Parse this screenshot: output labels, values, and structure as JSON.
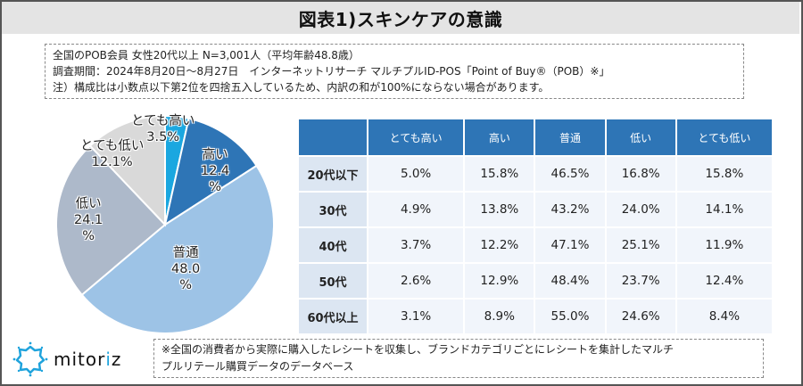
{
  "title": "図表1)スキンケアの意識",
  "info": {
    "line1": "全国のPOB会員 女性20代以上 N=3,001人（平均年齢48.8歳）",
    "line2": "調査期間：2024年8月20日～8月27日　インターネットリサーチ マルチプルID-POS「Point of Buy®（POB）※」",
    "line3": "注）構成比は小数点以下第2位を四捨五入しているため、内訳の和が100%にならない場合があります。"
  },
  "pie": {
    "labels": [
      {
        "name": "とても高い",
        "value": "3.5%"
      },
      {
        "name": "高い",
        "value": "12.4",
        "unit": "%"
      },
      {
        "name": "普通",
        "value": "48.0",
        "unit": "%"
      },
      {
        "name": "低い",
        "value": "24.1",
        "unit": "%"
      },
      {
        "name": "とても低い",
        "value": "12.1%"
      }
    ]
  },
  "table": {
    "headers": [
      "",
      "とても高い",
      "高い",
      "普通",
      "低い",
      "とても低い"
    ],
    "rows": [
      {
        "label": "20代以下",
        "cells": [
          "5.0%",
          "15.8%",
          "46.5%",
          "16.8%",
          "15.8%"
        ]
      },
      {
        "label": "30代",
        "cells": [
          "4.9%",
          "13.8%",
          "43.2%",
          "24.0%",
          "14.1%"
        ]
      },
      {
        "label": "40代",
        "cells": [
          "3.7%",
          "12.2%",
          "47.1%",
          "25.1%",
          "11.9%"
        ]
      },
      {
        "label": "50代",
        "cells": [
          "2.6%",
          "12.9%",
          "48.4%",
          "23.7%",
          "12.4%"
        ]
      },
      {
        "label": "60代以上",
        "cells": [
          "3.1%",
          "8.9%",
          "55.0%",
          "24.6%",
          "8.4%"
        ]
      }
    ]
  },
  "logo": {
    "text_pre": "mitor",
    "text_accent": "i",
    "text_post": "z"
  },
  "footnote": {
    "line1": "※全国の消費者から実際に購入したレシートを収集し、ブランドカテゴリごとにレシートを集計したマルチ",
    "line2": "プルリテール購買データのデータベース"
  },
  "colors": {
    "very_high": "#1aa7e0",
    "high": "#2e75b6",
    "normal": "#9dc3e6",
    "low": "#adb9ca",
    "very_low": "#d9d9d9",
    "table_header": "#2e75b6"
  },
  "chart_data": [
    {
      "type": "pie",
      "title": "スキンケアの意識（全体）",
      "categories": [
        "とても高い",
        "高い",
        "普通",
        "低い",
        "とても低い"
      ],
      "values": [
        3.5,
        12.4,
        48.0,
        24.1,
        12.1
      ],
      "unit": "%",
      "start_angle": "12 o'clock, clockwise"
    },
    {
      "type": "table",
      "title": "年代別 スキンケアの意識",
      "columns": [
        "とても高い",
        "高い",
        "普通",
        "低い",
        "とても低い"
      ],
      "rows": [
        "20代以下",
        "30代",
        "40代",
        "50代",
        "60代以上"
      ],
      "values": [
        [
          5.0,
          15.8,
          46.5,
          16.8,
          15.8
        ],
        [
          4.9,
          13.8,
          43.2,
          24.0,
          14.1
        ],
        [
          3.7,
          12.2,
          47.1,
          25.1,
          11.9
        ],
        [
          2.6,
          12.9,
          48.4,
          23.7,
          12.4
        ],
        [
          3.1,
          8.9,
          55.0,
          24.6,
          8.4
        ]
      ],
      "unit": "%"
    }
  ]
}
